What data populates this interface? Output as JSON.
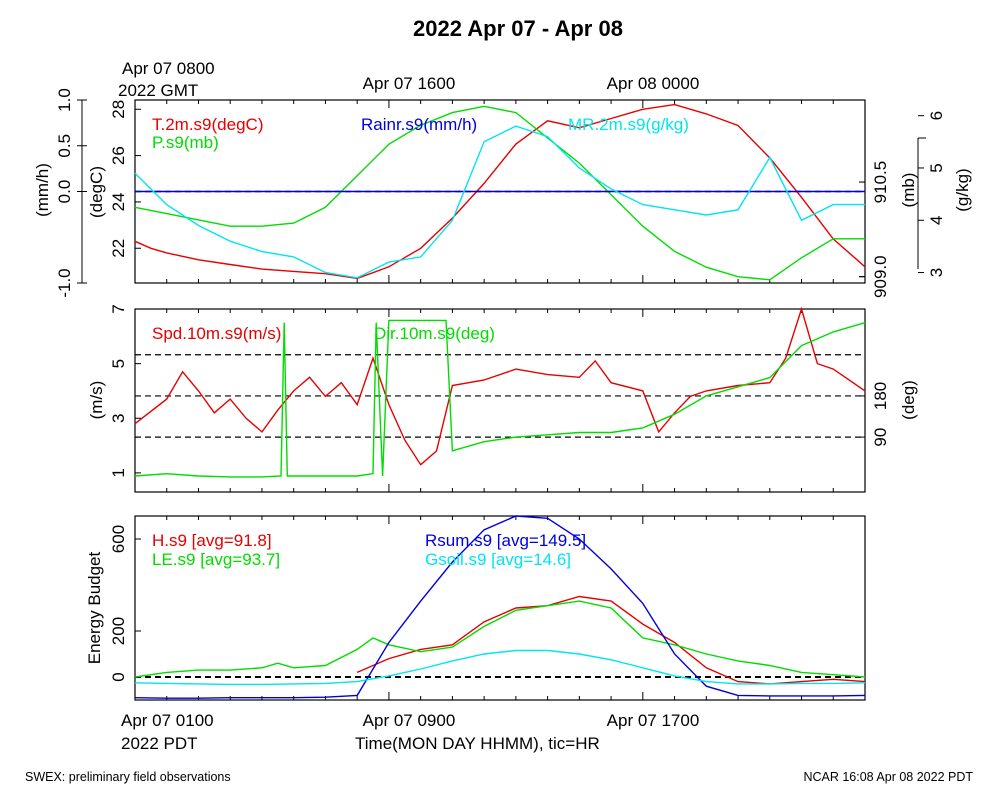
{
  "title": "2022 Apr 07 - Apr 08",
  "colors": {
    "red": "#e60000",
    "green": "#00dd00",
    "blue": "#0000dd",
    "cyan": "#00e5ee",
    "black": "#000000"
  },
  "top_axis": {
    "first_label_line1": "Apr 07 0800",
    "first_label_line2": "2022 GMT",
    "labels": [
      "Apr 07 1600",
      "Apr 08 0000"
    ]
  },
  "bottom_axis": {
    "labels": [
      "Apr 07 0100",
      "Apr 07 0900",
      "Apr 07 1700"
    ],
    "tz_label": "2022 PDT",
    "xlabel": "Time(MON DAY HHMM), tic=HR"
  },
  "footer": {
    "left": "SWEX: preliminary field observations",
    "right": "NCAR 16:08 Apr 08 2022 PDT"
  },
  "chart_data": [
    {
      "type": "line",
      "x_unit": "hours since Apr 07 0000 PDT",
      "xlim": [
        1,
        24
      ],
      "legend": [
        "T.2m.s9(degC)",
        "P.s9(mb)",
        "Rainr.s9(mm/h)",
        "MR.2m.s9(g/kg)"
      ],
      "axes": {
        "rain": {
          "label": "(mm/h)",
          "ticks": [
            "-1.0",
            "0.0",
            "0.5",
            "1.0"
          ],
          "ylim": [
            -1,
            1
          ]
        },
        "temp": {
          "label": "(degC)",
          "ticks": [
            "22",
            "24",
            "26",
            "28"
          ],
          "ylim": [
            20.5,
            28.4
          ]
        },
        "pres": {
          "label": "(mb)",
          "ticks": [
            "909.0",
            "910.5"
          ],
          "ylim": [
            908.9,
            911.8
          ]
        },
        "mr": {
          "label": "(g/kg)",
          "ticks": [
            "3",
            "4",
            "5",
            "6"
          ],
          "ylim": [
            2.8,
            6.3
          ]
        }
      },
      "series": [
        {
          "name": "T.2m.s9(degC)",
          "color": "#e60000",
          "axis": "temp",
          "x": [
            1,
            1.5,
            2,
            3,
            4,
            5,
            6,
            7,
            8,
            9,
            10,
            11,
            12,
            13,
            14,
            15,
            16,
            17,
            18,
            19,
            20,
            21,
            22,
            23,
            24
          ],
          "y": [
            22.3,
            22.0,
            21.8,
            21.5,
            21.3,
            21.1,
            21.0,
            20.9,
            20.7,
            21.2,
            22.0,
            23.3,
            24.8,
            26.5,
            27.5,
            27.2,
            27.6,
            28.0,
            28.2,
            27.8,
            27.3,
            25.9,
            24.2,
            22.4,
            21.2
          ]
        },
        {
          "name": "P.s9(mb)",
          "color": "#00dd00",
          "axis": "pres",
          "x": [
            1,
            2,
            3,
            4,
            5,
            6,
            7,
            8,
            9,
            10,
            11,
            12,
            13,
            14,
            15,
            16,
            17,
            18,
            19,
            20,
            21,
            22,
            23,
            24
          ],
          "y": [
            910.1,
            910.0,
            909.9,
            909.8,
            909.8,
            909.85,
            910.1,
            910.6,
            911.1,
            911.4,
            911.6,
            911.7,
            911.6,
            911.2,
            910.8,
            910.3,
            909.8,
            909.4,
            909.15,
            909.0,
            908.95,
            909.3,
            909.6,
            909.6
          ]
        },
        {
          "name": "Rainr.s9(mm/h)",
          "color": "#0000dd",
          "axis": "rain",
          "x": [
            1,
            24
          ],
          "y": [
            0,
            0
          ]
        },
        {
          "name": "MR.2m.s9(g/kg)",
          "color": "#00e5ee",
          "axis": "mr",
          "x": [
            1,
            2,
            3,
            4,
            5,
            6,
            7,
            8,
            9,
            10,
            11,
            12,
            13,
            14,
            15,
            16,
            17,
            18,
            19,
            20,
            21,
            22,
            23,
            24
          ],
          "y": [
            4.9,
            4.3,
            3.9,
            3.6,
            3.4,
            3.3,
            3.0,
            2.9,
            3.2,
            3.3,
            4.0,
            5.5,
            5.8,
            5.6,
            5.0,
            4.6,
            4.3,
            4.2,
            4.1,
            4.2,
            5.2,
            4.0,
            4.3,
            4.3
          ]
        }
      ]
    },
    {
      "type": "line",
      "x_unit": "hours since Apr 07 0000 PDT",
      "xlim": [
        1,
        24
      ],
      "legend": [
        "Spd.10m.s9(m/s)",
        "Dir.10m.s9(deg)"
      ],
      "axes": {
        "spd": {
          "label": "(m/s)",
          "ticks": [
            "1",
            "3",
            "5",
            "7"
          ],
          "ylim": [
            0.3,
            7
          ]
        },
        "dir": {
          "label": "(deg)",
          "ticks": [
            "90",
            "180"
          ],
          "ylim": [
            -30,
            370
          ]
        }
      },
      "reference_lines": [
        {
          "axis": "dir",
          "values": [
            90,
            180,
            270
          ]
        }
      ],
      "series": [
        {
          "name": "Spd.10m.s9(m/s)",
          "color": "#e60000",
          "axis": "spd",
          "x": [
            1,
            2,
            2.5,
            3,
            3.5,
            4,
            4.5,
            5,
            5.5,
            6,
            6.5,
            7,
            7.5,
            8,
            8.5,
            9,
            9.5,
            10,
            10.5,
            11,
            12,
            13,
            14,
            15,
            15.5,
            16,
            17,
            17.5,
            18,
            18.5,
            19,
            20,
            21,
            21.5,
            22,
            22.5,
            23,
            24
          ],
          "y": [
            2.8,
            3.7,
            4.7,
            4.0,
            3.2,
            3.7,
            3.0,
            2.5,
            3.3,
            4.0,
            4.5,
            3.8,
            4.3,
            3.5,
            5.2,
            3.5,
            2.2,
            1.3,
            1.8,
            4.2,
            4.4,
            4.8,
            4.6,
            4.5,
            5.1,
            4.3,
            4.0,
            2.5,
            3.2,
            3.8,
            4.0,
            4.2,
            4.3,
            5.2,
            7.0,
            5.0,
            4.8,
            4.0
          ]
        },
        {
          "name": "Dir.10m.s9(deg)",
          "color": "#00dd00",
          "axis": "dir",
          "x": [
            1,
            2,
            3,
            4,
            5,
            5.6,
            5.7,
            5.8,
            6,
            7,
            8,
            8.5,
            8.6,
            8.8,
            9,
            10,
            10.8,
            11,
            12,
            13,
            14,
            15,
            16,
            17,
            18,
            19,
            20,
            21,
            22,
            23,
            24
          ],
          "y": [
            5,
            10,
            5,
            3,
            3,
            5,
            340,
            5,
            5,
            5,
            5,
            10,
            340,
            5,
            345,
            345,
            345,
            60,
            80,
            90,
            95,
            100,
            100,
            110,
            140,
            180,
            200,
            220,
            290,
            320,
            340
          ]
        }
      ]
    },
    {
      "type": "line",
      "x_unit": "hours since Apr 07 0000 PDT",
      "xlim": [
        1,
        24
      ],
      "ylabel": "Energy Budget",
      "yticks": [
        "0",
        "200",
        "600"
      ],
      "ylim": [
        -100,
        700
      ],
      "legend": [
        "H.s9 [avg=91.8]",
        "LE.s9 [avg=93.7]",
        "Rsum.s9 [avg=149.5]",
        "Gsoil.s9 [avg=14.6]"
      ],
      "reference_lines": [
        {
          "values": [
            0
          ]
        }
      ],
      "series": [
        {
          "name": "H.s9 [avg=91.8]",
          "color": "#e60000",
          "x": [
            8,
            9,
            10,
            11,
            12,
            13,
            14,
            15,
            16,
            17,
            18,
            19,
            20,
            21,
            22,
            23,
            24
          ],
          "y": [
            20,
            80,
            120,
            140,
            240,
            300,
            310,
            350,
            330,
            230,
            150,
            40,
            -20,
            -30,
            -20,
            -10,
            -20
          ]
        },
        {
          "name": "LE.s9 [avg=93.7]",
          "color": "#00dd00",
          "x": [
            1,
            2,
            3,
            4,
            5,
            5.5,
            6,
            7,
            8,
            8.5,
            9,
            10,
            11,
            12,
            13,
            14,
            15,
            16,
            17,
            18,
            19,
            20,
            21,
            22,
            23,
            24
          ],
          "y": [
            0,
            20,
            30,
            30,
            40,
            60,
            40,
            50,
            120,
            170,
            140,
            110,
            130,
            220,
            290,
            310,
            330,
            300,
            170,
            140,
            100,
            70,
            50,
            20,
            10,
            0
          ]
        },
        {
          "name": "Rsum.s9 [avg=149.5]",
          "color": "#0000dd",
          "x": [
            1,
            2,
            3,
            4,
            5,
            6,
            7,
            8,
            9,
            10,
            11,
            12,
            13,
            14,
            15,
            16,
            17,
            18,
            19,
            20,
            21,
            22,
            23,
            24
          ],
          "y": [
            -90,
            -92,
            -92,
            -90,
            -90,
            -90,
            -88,
            -80,
            150,
            330,
            500,
            640,
            700,
            690,
            600,
            470,
            320,
            100,
            -40,
            -80,
            -82,
            -82,
            -82,
            -80
          ]
        },
        {
          "name": "Gsoil.s9 [avg=14.6]",
          "color": "#00e5ee",
          "x": [
            1,
            2,
            3,
            4,
            5,
            6,
            7,
            8,
            9,
            10,
            11,
            12,
            13,
            14,
            15,
            16,
            17,
            18,
            19,
            20,
            21,
            22,
            23,
            24
          ],
          "y": [
            -25,
            -28,
            -30,
            -32,
            -32,
            -30,
            -28,
            -20,
            5,
            35,
            70,
            100,
            115,
            115,
            100,
            75,
            40,
            5,
            -20,
            -30,
            -30,
            -28,
            -28,
            -25
          ]
        }
      ]
    }
  ]
}
